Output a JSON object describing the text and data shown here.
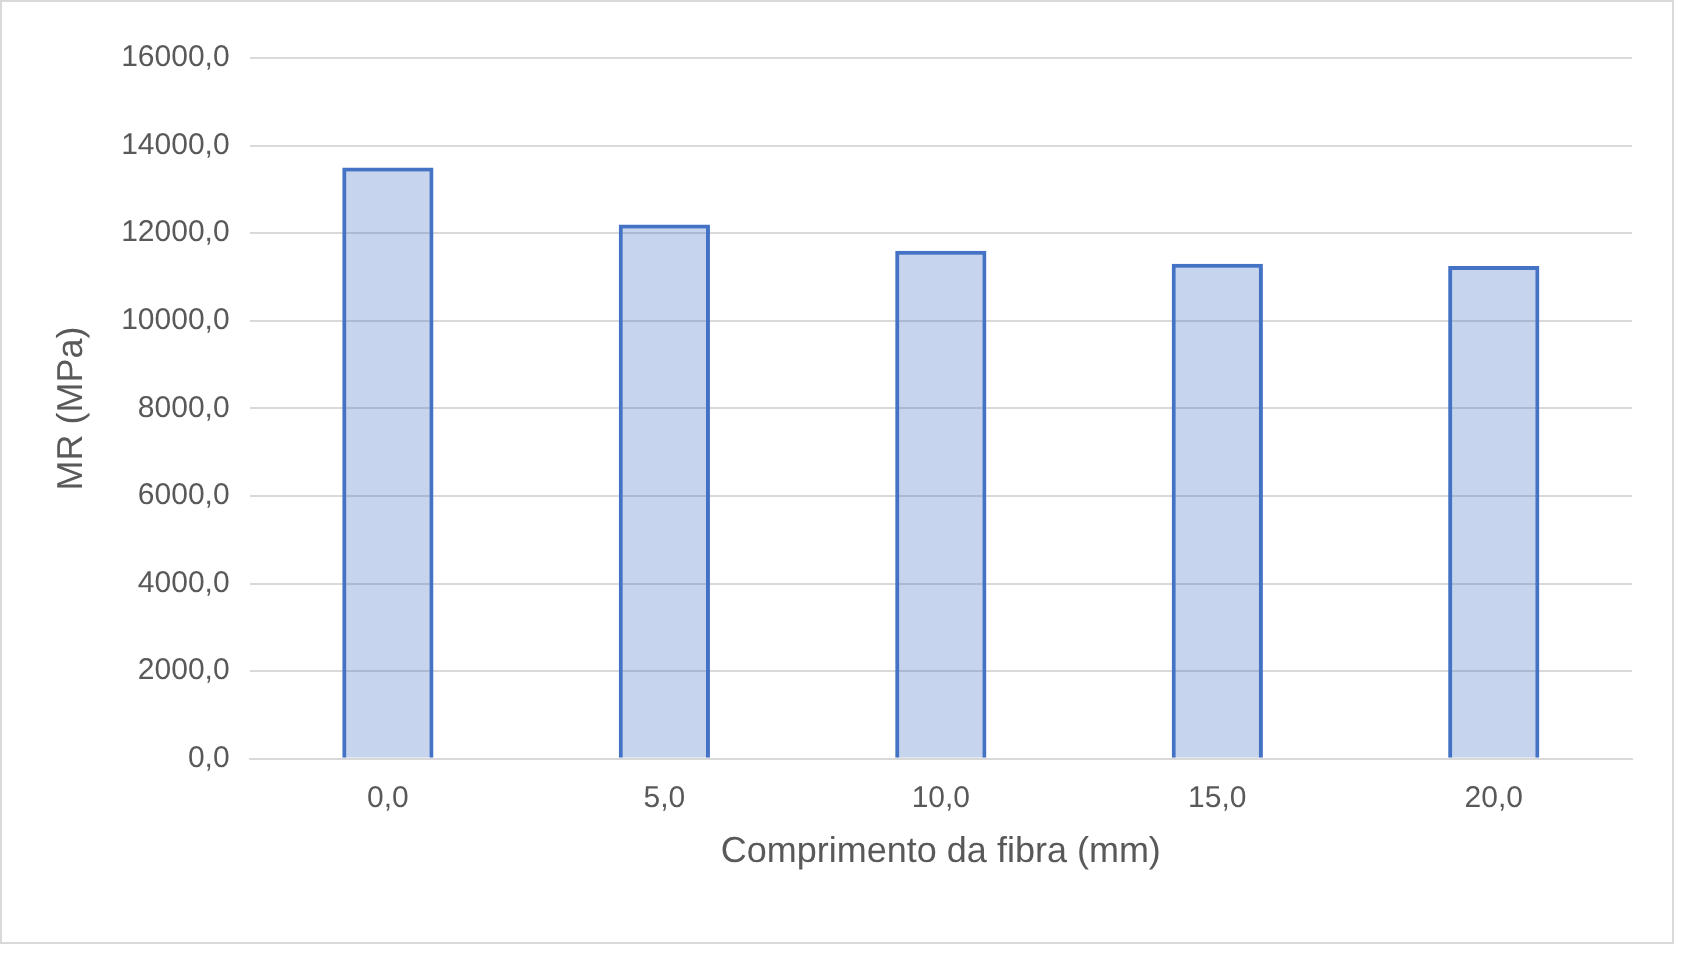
{
  "chart_data": {
    "type": "bar",
    "xlabel": "Comprimento da fibra (mm)",
    "ylabel": "MR (MPa)",
    "categories": [
      "0,0",
      "5,0",
      "10,0",
      "15,0",
      "20,0"
    ],
    "values": [
      13500,
      12200,
      11600,
      11300,
      11250
    ],
    "color": "#4472c4",
    "ylim": [
      0,
      16000
    ],
    "yticks": [
      {
        "value": 0,
        "label": "0,0"
      },
      {
        "value": 2000,
        "label": "2000,0"
      },
      {
        "value": 4000,
        "label": "4000,0"
      },
      {
        "value": 6000,
        "label": "6000,0"
      },
      {
        "value": 8000,
        "label": "8000,0"
      },
      {
        "value": 10000,
        "label": "10000,0"
      },
      {
        "value": 12000,
        "label": "12000,0"
      },
      {
        "value": 14000,
        "label": "14000,0"
      },
      {
        "value": 16000,
        "label": "16000,0"
      }
    ],
    "grid": "y",
    "legend": false
  }
}
